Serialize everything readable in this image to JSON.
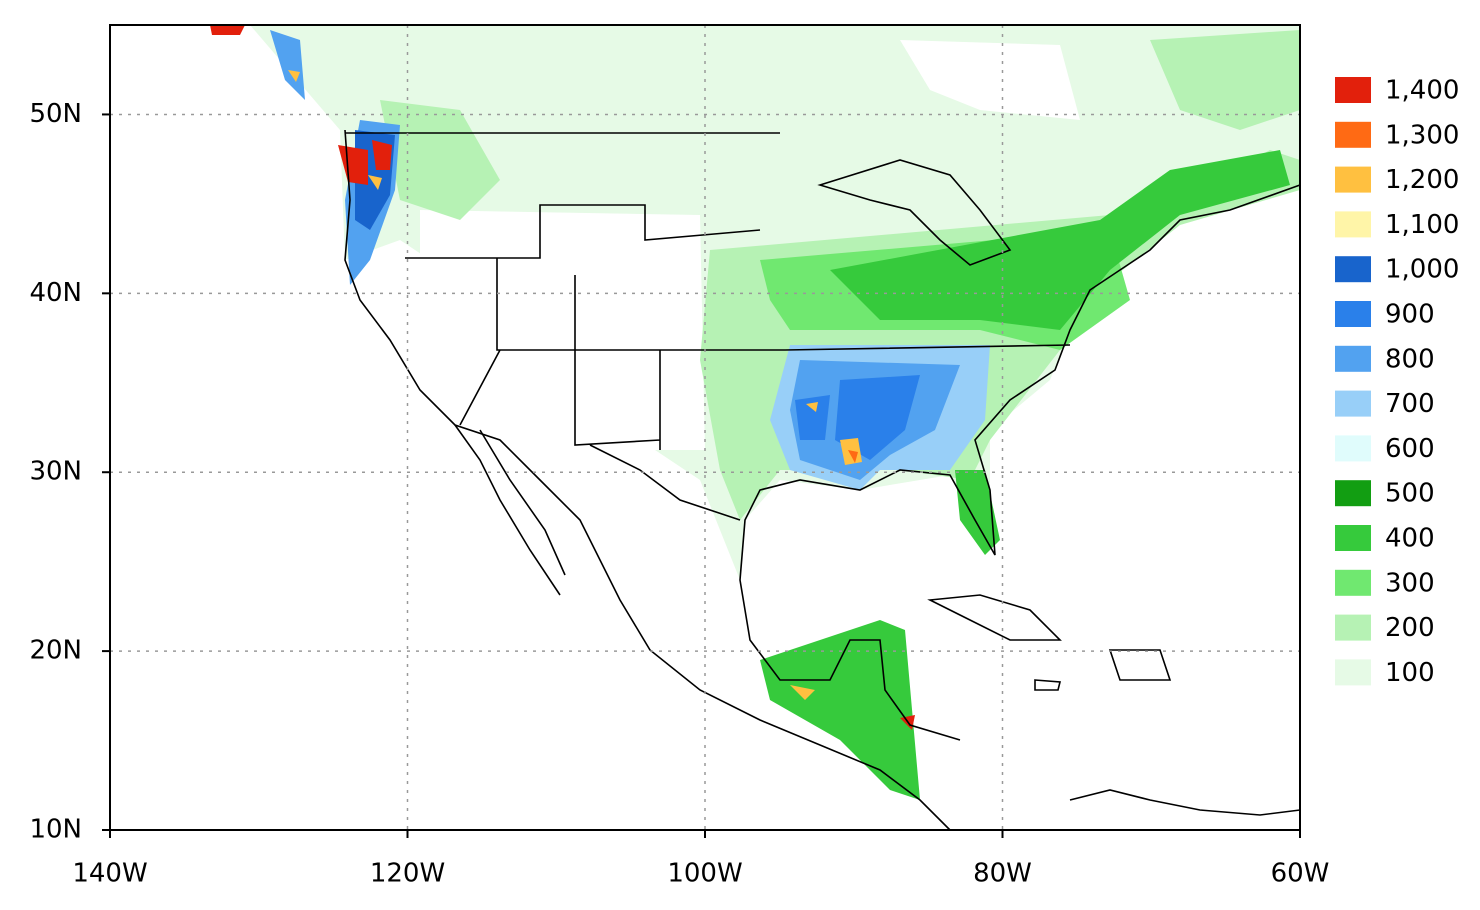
{
  "map": {
    "xlim": [
      -140,
      -60
    ],
    "ylim": [
      10,
      55
    ],
    "grid": true,
    "xticks": [
      {
        "value": -140,
        "label": "140W"
      },
      {
        "value": -120,
        "label": "120W"
      },
      {
        "value": -100,
        "label": "100W"
      },
      {
        "value": -80,
        "label": "80W"
      },
      {
        "value": -60,
        "label": "60W"
      }
    ],
    "yticks": [
      {
        "value": 10,
        "label": "10N"
      },
      {
        "value": 20,
        "label": "20N"
      },
      {
        "value": 30,
        "label": "30N"
      },
      {
        "value": 40,
        "label": "40N"
      },
      {
        "value": 50,
        "label": "50N"
      }
    ]
  },
  "legend": {
    "items": [
      {
        "label": "1,400",
        "color": "#e2200c"
      },
      {
        "label": "1,300",
        "color": "#ff6a14"
      },
      {
        "label": "1,200",
        "color": "#ffc040"
      },
      {
        "label": "1,100",
        "color": "#fff5a8"
      },
      {
        "label": "1,000",
        "color": "#1864cc"
      },
      {
        "label": "900",
        "color": "#2a80ea"
      },
      {
        "label": "800",
        "color": "#52a2f0"
      },
      {
        "label": "700",
        "color": "#98cff8"
      },
      {
        "label": "600",
        "color": "#e0fcfc"
      },
      {
        "label": "500",
        "color": "#129e12"
      },
      {
        "label": "400",
        "color": "#36ca3c"
      },
      {
        "label": "300",
        "color": "#70e870"
      },
      {
        "label": "200",
        "color": "#b6f2b4"
      },
      {
        "label": "100",
        "color": "#e6fae6"
      }
    ]
  }
}
